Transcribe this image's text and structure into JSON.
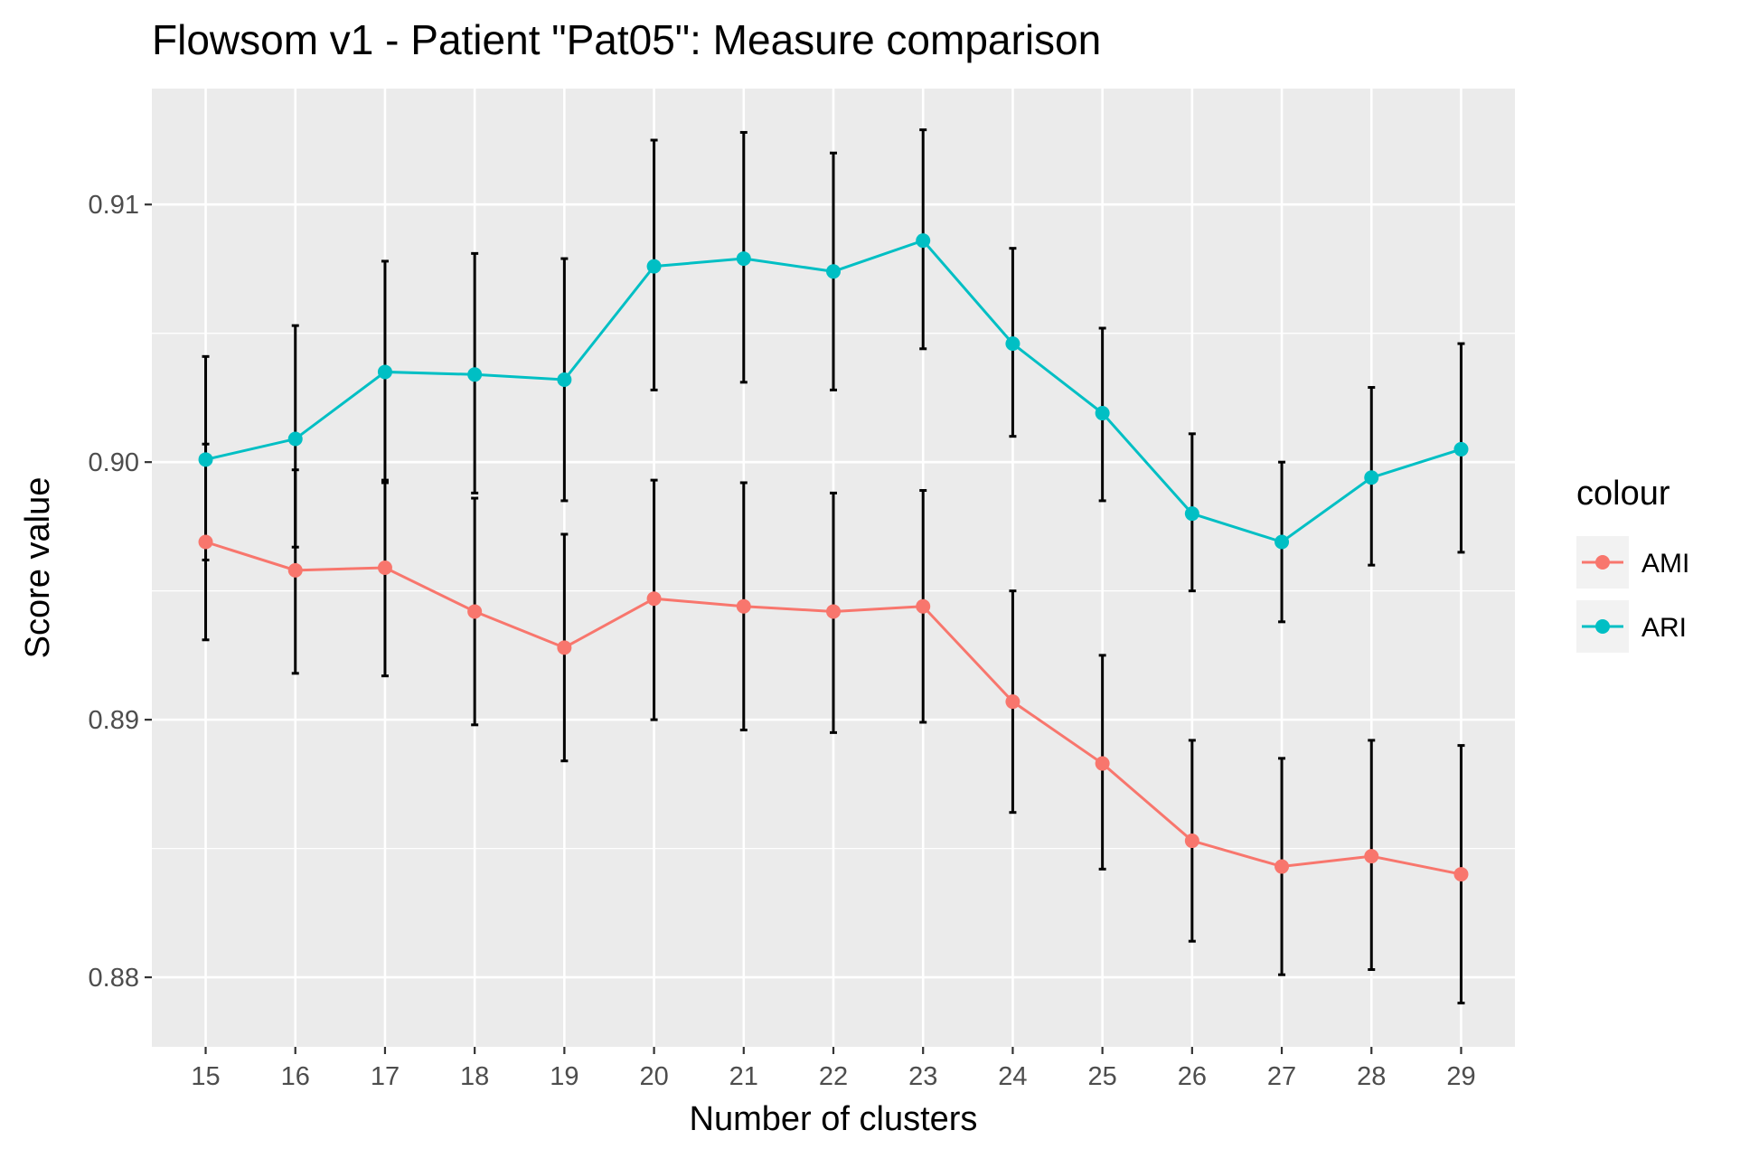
{
  "chart_data": {
    "type": "line",
    "title": "Flowsom v1 - Patient \"Pat05\": Measure comparison",
    "xlabel": "Number of clusters",
    "ylabel": "Score value",
    "categories": [
      "15",
      "16",
      "17",
      "18",
      "19",
      "20",
      "21",
      "22",
      "23",
      "24",
      "25",
      "26",
      "27",
      "28",
      "29"
    ],
    "x_ticks": [
      "15",
      "16",
      "17",
      "18",
      "19",
      "20",
      "21",
      "22",
      "23",
      "24",
      "25",
      "26",
      "27",
      "28",
      "29"
    ],
    "y_ticks": [
      "0.88",
      "0.89",
      "0.90",
      "0.91"
    ],
    "ylim": [
      0.8773,
      0.9145
    ],
    "grid": true,
    "legend": {
      "title": "colour",
      "position": "right"
    },
    "series": [
      {
        "name": "AMI",
        "color": "#F8766D",
        "values": [
          0.8969,
          0.8958,
          0.8959,
          0.8942,
          0.8928,
          0.8947,
          0.8944,
          0.8942,
          0.8944,
          0.8907,
          0.8883,
          0.8853,
          0.8843,
          0.8847,
          0.884
        ],
        "error_low": [
          0.8931,
          0.8918,
          0.8917,
          0.8898,
          0.8884,
          0.89,
          0.8896,
          0.8895,
          0.8899,
          0.8864,
          0.8842,
          0.8814,
          0.8801,
          0.8803,
          0.879
        ],
        "error_high": [
          0.9007,
          0.8997,
          0.8993,
          0.8986,
          0.8972,
          0.8993,
          0.8992,
          0.8988,
          0.8989,
          0.895,
          0.8925,
          0.8892,
          0.8885,
          0.8892,
          0.889
        ]
      },
      {
        "name": "ARI",
        "color": "#00BFC4",
        "values": [
          0.9001,
          0.9009,
          0.9035,
          0.9034,
          0.9032,
          0.9076,
          0.9079,
          0.9074,
          0.9086,
          0.9046,
          0.9019,
          0.898,
          0.8969,
          0.8994,
          0.9005
        ],
        "error_low": [
          0.8962,
          0.8967,
          0.8992,
          0.8988,
          0.8985,
          0.9028,
          0.9031,
          0.9028,
          0.9044,
          0.901,
          0.8985,
          0.895,
          0.8938,
          0.896,
          0.8965
        ],
        "error_high": [
          0.9041,
          0.9053,
          0.9078,
          0.9081,
          0.9079,
          0.9125,
          0.9128,
          0.912,
          0.9129,
          0.9083,
          0.9052,
          0.9011,
          0.9,
          0.9029,
          0.9046
        ]
      }
    ]
  },
  "colors": {
    "panel_background": "#EBEBEB",
    "grid_major": "#FFFFFF",
    "error_bar": "#000000",
    "tick_text": "#4D4D4D",
    "legend_key_background": "#F2F2F2"
  }
}
